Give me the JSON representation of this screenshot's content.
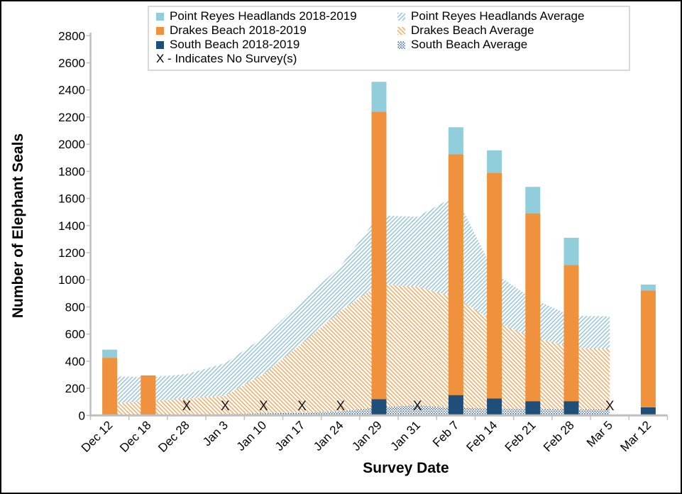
{
  "chart_data": {
    "type": "bar",
    "subtype": "stacked-bars-with-stacked-area-averages",
    "title": "",
    "xlabel": "Survey Date",
    "ylabel": "Number of Elephant Seals",
    "ylim": [
      0,
      2800
    ],
    "y_tick_step": 200,
    "grid": false,
    "legend_position": "top-center",
    "categories": [
      "Dec 12",
      "Dec 18",
      "Dec 28",
      "Jan 3",
      "Jan 10",
      "Jan 17",
      "Jan 24",
      "Jan 29",
      "Jan 31",
      "Feb 7",
      "Feb 14",
      "Feb 21",
      "Feb 28",
      "Mar 5",
      "Mar 12"
    ],
    "bar_series": [
      {
        "name": "South Beach 2018-2019",
        "color": "#1F4E79",
        "values": [
          0,
          0,
          null,
          null,
          null,
          null,
          null,
          120,
          null,
          150,
          125,
          105,
          105,
          null,
          60
        ]
      },
      {
        "name": "Drakes Beach 2018-2019",
        "color": "#F0913D",
        "values": [
          425,
          295,
          null,
          null,
          null,
          null,
          null,
          2120,
          null,
          1775,
          1665,
          1385,
          1005,
          null,
          860
        ]
      },
      {
        "name": "Point Reyes Headlands 2018-2019",
        "color": "#92CDDC",
        "values": [
          60,
          0,
          null,
          null,
          null,
          null,
          null,
          220,
          null,
          200,
          165,
          195,
          200,
          null,
          45
        ]
      }
    ],
    "area_series": [
      {
        "name": "South Beach Average",
        "pattern": "dots-navy",
        "pattern_color": "#24527E",
        "values": [
          5,
          5,
          8,
          10,
          15,
          20,
          30,
          60,
          75,
          55,
          50,
          50,
          45,
          45,
          null
        ]
      },
      {
        "name": "Drakes Beach Average",
        "pattern": "hatch-orange",
        "pattern_color": "#F2A55C",
        "values": [
          85,
          100,
          115,
          135,
          290,
          510,
          740,
          905,
          875,
          815,
          640,
          530,
          455,
          445,
          null
        ]
      },
      {
        "name": "Point Reyes Headlands Average",
        "pattern": "hatch-blue",
        "pattern_color": "#8FC2D8",
        "values": [
          200,
          175,
          182,
          240,
          270,
          315,
          330,
          510,
          515,
          750,
          360,
          280,
          235,
          240,
          null
        ]
      }
    ],
    "no_survey_marker": "X",
    "no_survey_categories": [
      "Dec 28",
      "Jan 3",
      "Jan 10",
      "Jan 17",
      "Jan 24",
      "Jan 31",
      "Mar 5"
    ],
    "no_survey_marker_value": 80,
    "colors": {
      "axis": "#BFBFBF",
      "text": "#000000",
      "legend_border": "#D9D9D9",
      "background": "#FFFFFF"
    }
  },
  "legend": {
    "items": [
      {
        "label": "Point Reyes Headlands 2018-2019"
      },
      {
        "label": "Point Reyes Headlands Average"
      },
      {
        "label": "Drakes Beach 2018-2019"
      },
      {
        "label": "Drakes Beach Average"
      },
      {
        "label": "South Beach 2018-2019"
      },
      {
        "label": "South Beach Average"
      },
      {
        "label": "X - Indicates No Survey(s)"
      }
    ]
  }
}
